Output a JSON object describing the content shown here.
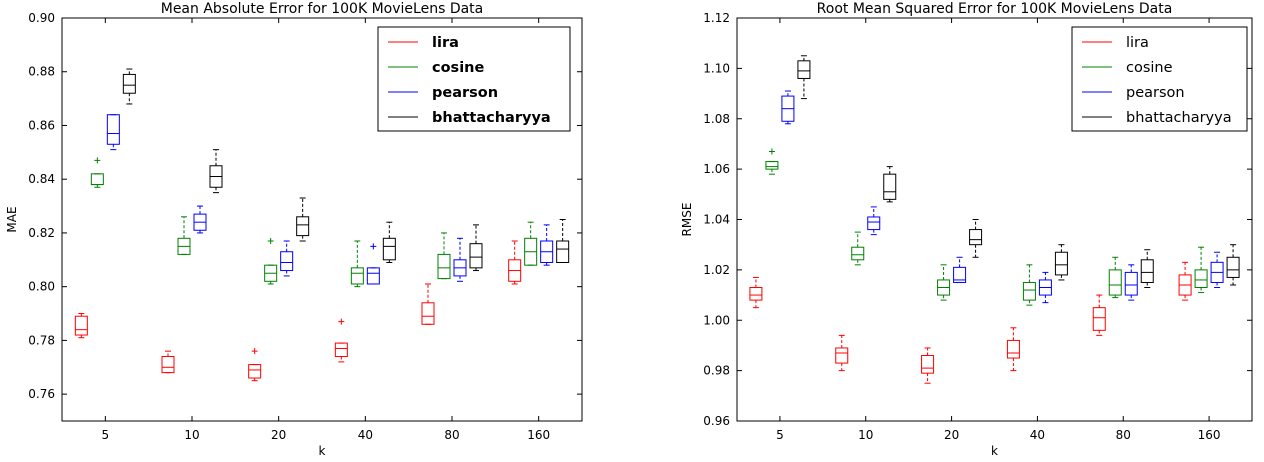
{
  "chart_data": [
    {
      "type": "box",
      "title": "Mean Absolute Error for 100K MovieLens Data",
      "xlabel": "k",
      "ylabel": "MAE",
      "ylim": [
        0.75,
        0.9
      ],
      "yticks": [
        "0.76",
        "0.78",
        "0.80",
        "0.82",
        "0.84",
        "0.86",
        "0.88",
        "0.90"
      ],
      "categories": [
        "5",
        "10",
        "20",
        "40",
        "80",
        "160"
      ],
      "legend_position": "top-right",
      "legend_bold": true,
      "series": [
        {
          "name": "lira",
          "color": "#ff0000",
          "boxes": [
            {
              "whislo": 0.781,
              "q1": 0.782,
              "med": 0.784,
              "q3": 0.789,
              "whishi": 0.79,
              "fliers": []
            },
            {
              "whislo": 0.768,
              "q1": 0.768,
              "med": 0.77,
              "q3": 0.774,
              "whishi": 0.776,
              "fliers": []
            },
            {
              "whislo": 0.765,
              "q1": 0.766,
              "med": 0.769,
              "q3": 0.771,
              "whishi": 0.771,
              "fliers": [
                0.776
              ]
            },
            {
              "whislo": 0.772,
              "q1": 0.774,
              "med": 0.777,
              "q3": 0.779,
              "whishi": 0.779,
              "fliers": [
                0.787
              ]
            },
            {
              "whislo": 0.786,
              "q1": 0.786,
              "med": 0.789,
              "q3": 0.794,
              "whishi": 0.801,
              "fliers": []
            },
            {
              "whislo": 0.801,
              "q1": 0.802,
              "med": 0.806,
              "q3": 0.81,
              "whishi": 0.817,
              "fliers": []
            }
          ]
        },
        {
          "name": "cosine",
          "color": "#008000",
          "boxes": [
            {
              "whislo": 0.837,
              "q1": 0.838,
              "med": 0.838,
              "q3": 0.842,
              "whishi": 0.842,
              "fliers": [
                0.847
              ]
            },
            {
              "whislo": 0.812,
              "q1": 0.812,
              "med": 0.815,
              "q3": 0.818,
              "whishi": 0.826,
              "fliers": []
            },
            {
              "whislo": 0.801,
              "q1": 0.802,
              "med": 0.805,
              "q3": 0.808,
              "whishi": 0.808,
              "fliers": [
                0.817
              ]
            },
            {
              "whislo": 0.8,
              "q1": 0.801,
              "med": 0.805,
              "q3": 0.807,
              "whishi": 0.817,
              "fliers": []
            },
            {
              "whislo": 0.803,
              "q1": 0.803,
              "med": 0.807,
              "q3": 0.812,
              "whishi": 0.82,
              "fliers": []
            },
            {
              "whislo": 0.808,
              "q1": 0.808,
              "med": 0.813,
              "q3": 0.818,
              "whishi": 0.824,
              "fliers": []
            }
          ]
        },
        {
          "name": "pearson",
          "color": "#0000ff",
          "boxes": [
            {
              "whislo": 0.851,
              "q1": 0.853,
              "med": 0.857,
              "q3": 0.864,
              "whishi": 0.864,
              "fliers": []
            },
            {
              "whislo": 0.82,
              "q1": 0.821,
              "med": 0.824,
              "q3": 0.827,
              "whishi": 0.83,
              "fliers": []
            },
            {
              "whislo": 0.804,
              "q1": 0.806,
              "med": 0.809,
              "q3": 0.813,
              "whishi": 0.817,
              "fliers": []
            },
            {
              "whislo": 0.801,
              "q1": 0.801,
              "med": 0.805,
              "q3": 0.807,
              "whishi": 0.807,
              "fliers": [
                0.815
              ]
            },
            {
              "whislo": 0.802,
              "q1": 0.804,
              "med": 0.807,
              "q3": 0.81,
              "whishi": 0.818,
              "fliers": []
            },
            {
              "whislo": 0.808,
              "q1": 0.809,
              "med": 0.813,
              "q3": 0.817,
              "whishi": 0.823,
              "fliers": []
            }
          ]
        },
        {
          "name": "bhattacharyya",
          "color": "#000000",
          "boxes": [
            {
              "whislo": 0.868,
              "q1": 0.872,
              "med": 0.875,
              "q3": 0.879,
              "whishi": 0.881,
              "fliers": []
            },
            {
              "whislo": 0.835,
              "q1": 0.837,
              "med": 0.841,
              "q3": 0.845,
              "whishi": 0.851,
              "fliers": []
            },
            {
              "whislo": 0.817,
              "q1": 0.819,
              "med": 0.823,
              "q3": 0.826,
              "whishi": 0.833,
              "fliers": []
            },
            {
              "whislo": 0.809,
              "q1": 0.81,
              "med": 0.815,
              "q3": 0.818,
              "whishi": 0.824,
              "fliers": []
            },
            {
              "whislo": 0.806,
              "q1": 0.807,
              "med": 0.811,
              "q3": 0.816,
              "whishi": 0.823,
              "fliers": []
            },
            {
              "whislo": 0.809,
              "q1": 0.809,
              "med": 0.814,
              "q3": 0.817,
              "whishi": 0.825,
              "fliers": []
            }
          ]
        }
      ]
    },
    {
      "type": "box",
      "title": "Root Mean Squared Error for 100K MovieLens Data",
      "xlabel": "k",
      "ylabel": "RMSE",
      "ylim": [
        0.96,
        1.12
      ],
      "yticks": [
        "0.96",
        "0.98",
        "1.00",
        "1.02",
        "1.04",
        "1.06",
        "1.08",
        "1.10",
        "1.12"
      ],
      "categories": [
        "5",
        "10",
        "20",
        "40",
        "80",
        "160"
      ],
      "legend_position": "top-right",
      "legend_bold": false,
      "series": [
        {
          "name": "lira",
          "color": "#ff0000",
          "boxes": [
            {
              "whislo": 1.005,
              "q1": 1.008,
              "med": 1.01,
              "q3": 1.013,
              "whishi": 1.017,
              "fliers": []
            },
            {
              "whislo": 0.98,
              "q1": 0.983,
              "med": 0.987,
              "q3": 0.989,
              "whishi": 0.994,
              "fliers": []
            },
            {
              "whislo": 0.975,
              "q1": 0.979,
              "med": 0.981,
              "q3": 0.986,
              "whishi": 0.989,
              "fliers": []
            },
            {
              "whislo": 0.98,
              "q1": 0.985,
              "med": 0.987,
              "q3": 0.992,
              "whishi": 0.997,
              "fliers": []
            },
            {
              "whislo": 0.994,
              "q1": 0.996,
              "med": 1.001,
              "q3": 1.005,
              "whishi": 1.01,
              "fliers": []
            },
            {
              "whislo": 1.008,
              "q1": 1.01,
              "med": 1.014,
              "q3": 1.018,
              "whishi": 1.023,
              "fliers": []
            }
          ]
        },
        {
          "name": "cosine",
          "color": "#008000",
          "boxes": [
            {
              "whislo": 1.058,
              "q1": 1.06,
              "med": 1.061,
              "q3": 1.063,
              "whishi": 1.063,
              "fliers": [
                1.067
              ]
            },
            {
              "whislo": 1.022,
              "q1": 1.024,
              "med": 1.026,
              "q3": 1.029,
              "whishi": 1.035,
              "fliers": []
            },
            {
              "whislo": 1.008,
              "q1": 1.01,
              "med": 1.013,
              "q3": 1.016,
              "whishi": 1.022,
              "fliers": []
            },
            {
              "whislo": 1.006,
              "q1": 1.008,
              "med": 1.012,
              "q3": 1.015,
              "whishi": 1.022,
              "fliers": []
            },
            {
              "whislo": 1.009,
              "q1": 1.01,
              "med": 1.014,
              "q3": 1.02,
              "whishi": 1.025,
              "fliers": []
            },
            {
              "whislo": 1.011,
              "q1": 1.013,
              "med": 1.016,
              "q3": 1.02,
              "whishi": 1.029,
              "fliers": []
            }
          ]
        },
        {
          "name": "pearson",
          "color": "#0000ff",
          "boxes": [
            {
              "whislo": 1.078,
              "q1": 1.079,
              "med": 1.084,
              "q3": 1.089,
              "whishi": 1.091,
              "fliers": []
            },
            {
              "whislo": 1.034,
              "q1": 1.036,
              "med": 1.039,
              "q3": 1.041,
              "whishi": 1.045,
              "fliers": []
            },
            {
              "whislo": 1.015,
              "q1": 1.015,
              "med": 1.016,
              "q3": 1.021,
              "whishi": 1.025,
              "fliers": []
            },
            {
              "whislo": 1.007,
              "q1": 1.01,
              "med": 1.013,
              "q3": 1.016,
              "whishi": 1.019,
              "fliers": []
            },
            {
              "whislo": 1.008,
              "q1": 1.01,
              "med": 1.014,
              "q3": 1.019,
              "whishi": 1.022,
              "fliers": []
            },
            {
              "whislo": 1.013,
              "q1": 1.015,
              "med": 1.019,
              "q3": 1.023,
              "whishi": 1.027,
              "fliers": []
            }
          ]
        },
        {
          "name": "bhattacharyya",
          "color": "#000000",
          "boxes": [
            {
              "whislo": 1.088,
              "q1": 1.096,
              "med": 1.099,
              "q3": 1.103,
              "whishi": 1.105,
              "fliers": []
            },
            {
              "whislo": 1.047,
              "q1": 1.048,
              "med": 1.051,
              "q3": 1.058,
              "whishi": 1.061,
              "fliers": []
            },
            {
              "whislo": 1.025,
              "q1": 1.03,
              "med": 1.032,
              "q3": 1.036,
              "whishi": 1.04,
              "fliers": []
            },
            {
              "whislo": 1.016,
              "q1": 1.018,
              "med": 1.022,
              "q3": 1.027,
              "whishi": 1.03,
              "fliers": []
            },
            {
              "whislo": 1.013,
              "q1": 1.015,
              "med": 1.019,
              "q3": 1.024,
              "whishi": 1.028,
              "fliers": []
            },
            {
              "whislo": 1.014,
              "q1": 1.017,
              "med": 1.02,
              "q3": 1.025,
              "whishi": 1.03,
              "fliers": []
            }
          ]
        }
      ]
    }
  ]
}
